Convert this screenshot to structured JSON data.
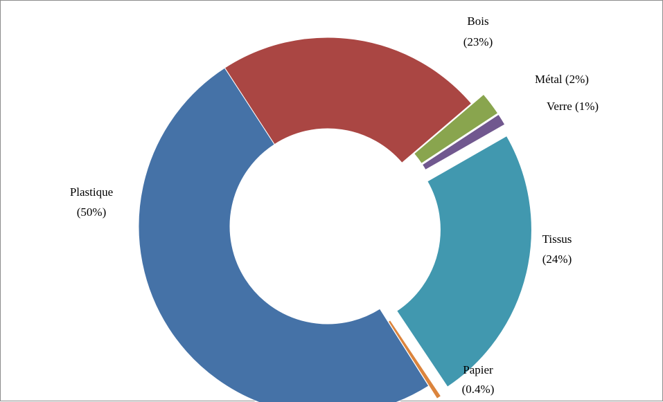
{
  "chart_data": {
    "type": "pie",
    "variant": "donut",
    "title": "",
    "slices": [
      {
        "label": "Bois",
        "value_label": "(23%)",
        "value": 23,
        "color": "#AA4643"
      },
      {
        "label": "Métal",
        "value_label": "(2%)",
        "value": 2,
        "color": "#89A54E"
      },
      {
        "label": "Verre",
        "value_label": "(1%)",
        "value": 1,
        "color": "#71588F"
      },
      {
        "label": "Tissus",
        "value_label": "(24%)",
        "value": 24,
        "color": "#4198AF"
      },
      {
        "label": "Papier",
        "value_label": "(0.4%)",
        "value": 0.4,
        "color": "#DB843D"
      },
      {
        "label": "Plastique",
        "value_label": "(50%)",
        "value": 50,
        "color": "#4572A7"
      }
    ],
    "exploded": [
      "Métal",
      "Verre",
      "Tissus",
      "Papier"
    ],
    "legend": "none"
  }
}
